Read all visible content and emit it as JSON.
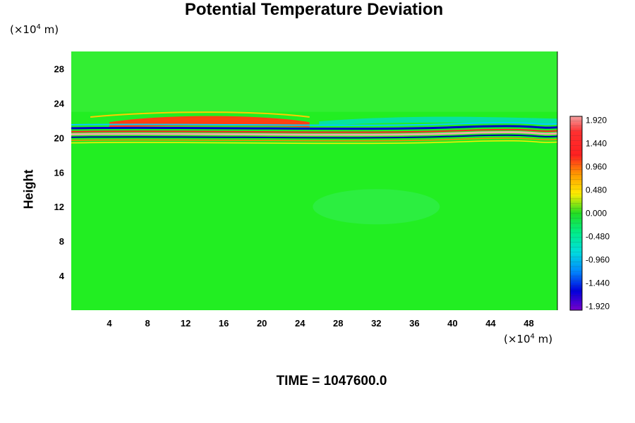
{
  "chart_data": {
    "type": "heatmap",
    "title": "Potential Temperature Deviation",
    "ylabel": "Height",
    "xlabel": "",
    "x_unit_prefix": "(×10",
    "x_unit_exp": "4",
    "x_unit_suffix": " m)",
    "y_unit_prefix": "(×10",
    "y_unit_exp": "4",
    "y_unit_suffix": " m)",
    "xlim": [
      0,
      51
    ],
    "ylim": [
      0,
      30
    ],
    "x_ticks": [
      4,
      8,
      12,
      16,
      20,
      24,
      28,
      32,
      36,
      40,
      44,
      48
    ],
    "y_ticks": [
      4,
      8,
      12,
      16,
      20,
      24,
      28
    ],
    "colorbar": {
      "min": -2.0,
      "max": 2.0,
      "labels": [
        "1.920",
        "1.440",
        "0.960",
        "0.480",
        "0.000",
        "-0.480",
        "-0.960",
        "-1.440",
        "-1.920"
      ],
      "label_values": [
        1.92,
        1.44,
        0.96,
        0.48,
        0.0,
        -0.48,
        -0.96,
        -1.44,
        -1.92
      ]
    },
    "features": [
      {
        "description_value_at": "background",
        "value": 0.0
      },
      {
        "height_range": [
          20.0,
          21.5
        ],
        "value_range": [
          -1.92,
          1.92
        ]
      },
      {
        "height_range": [
          21.5,
          23.0
        ],
        "x_range": [
          4,
          25
        ],
        "value": 1.2
      }
    ]
  },
  "footer": {
    "time_text": "TIME = 1047600.0"
  }
}
